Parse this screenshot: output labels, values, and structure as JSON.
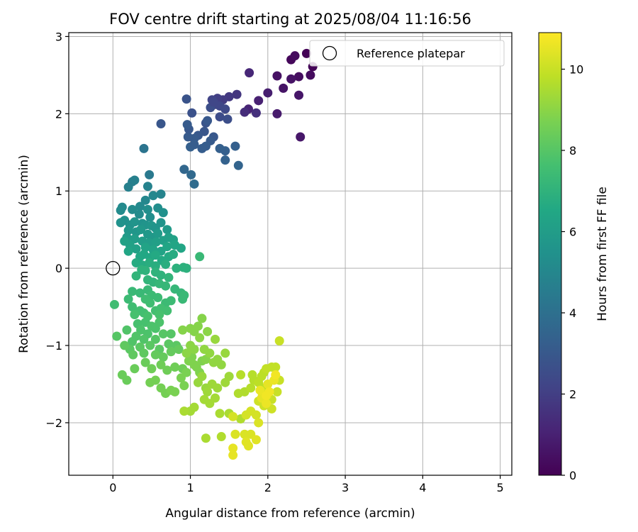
{
  "chart_data": {
    "type": "scatter",
    "title": "FOV centre drift starting at 2025/08/04 11:16:56",
    "xlabel": "Angular distance from reference (arcmin)",
    "ylabel": "Rotation from reference (arcmin)",
    "xlim": [
      -0.57,
      5.15
    ],
    "ylim": [
      -2.68,
      3.05
    ],
    "xticks": [
      0,
      1,
      2,
      3,
      4,
      5
    ],
    "xtick_labels": [
      "0",
      "1",
      "2",
      "3",
      "4",
      "5"
    ],
    "yticks": [
      -2,
      -1,
      0,
      1,
      2,
      3
    ],
    "ytick_labels": [
      "−2",
      "−1",
      "0",
      "1",
      "2",
      "3"
    ],
    "grid": true,
    "legend": {
      "position": "top-right",
      "entries": [
        "Reference platepar"
      ]
    },
    "colorbar": {
      "label": "Hours from first FF file",
      "colormap": "viridis",
      "range": [
        0,
        10.9
      ],
      "ticks": [
        0,
        2,
        4,
        6,
        8,
        10
      ],
      "tick_labels": [
        "0",
        "2",
        "4",
        "6",
        "8",
        "10"
      ]
    },
    "reference_point": {
      "name": "Reference platepar",
      "x": 0,
      "y": 0
    },
    "points": [
      [
        2.5,
        2.78,
        0.05
      ],
      [
        2.58,
        2.61,
        0.1
      ],
      [
        2.3,
        2.7,
        0.2
      ],
      [
        2.35,
        2.75,
        0.3
      ],
      [
        2.55,
        2.5,
        0.35
      ],
      [
        2.4,
        2.48,
        0.4
      ],
      [
        2.12,
        2.49,
        0.5
      ],
      [
        2.3,
        2.45,
        0.55
      ],
      [
        2.2,
        2.33,
        0.6
      ],
      [
        2.4,
        2.24,
        0.65
      ],
      [
        2.42,
        1.7,
        0.7
      ],
      [
        2.12,
        2.0,
        0.8
      ],
      [
        2.0,
        2.27,
        0.9
      ],
      [
        1.88,
        2.17,
        1.0
      ],
      [
        1.75,
        2.06,
        1.1
      ],
      [
        1.76,
        2.53,
        1.2
      ],
      [
        1.7,
        2.02,
        1.4
      ],
      [
        1.85,
        2.01,
        1.5
      ],
      [
        1.6,
        2.25,
        1.7
      ],
      [
        1.5,
        2.22,
        1.8
      ],
      [
        1.42,
        2.18,
        1.9
      ],
      [
        1.35,
        2.2,
        2.0
      ],
      [
        1.32,
        2.12,
        2.1
      ],
      [
        1.28,
        2.18,
        2.2
      ],
      [
        1.38,
        2.1,
        2.3
      ],
      [
        1.45,
        2.06,
        2.4
      ],
      [
        1.38,
        1.96,
        2.5
      ],
      [
        1.26,
        2.08,
        2.6
      ],
      [
        1.3,
        2.15,
        2.3
      ],
      [
        1.48,
        1.93,
        2.6
      ],
      [
        1.02,
        2.01,
        2.7
      ],
      [
        0.95,
        2.19,
        2.8
      ],
      [
        0.62,
        1.87,
        2.9
      ],
      [
        1.2,
        1.88,
        2.8
      ],
      [
        1.22,
        1.91,
        3.0
      ],
      [
        1.18,
        1.77,
        2.9
      ],
      [
        1.1,
        1.72,
        3.0
      ],
      [
        1.05,
        1.68,
        3.1
      ],
      [
        0.97,
        1.7,
        3.1
      ],
      [
        0.98,
        1.8,
        3.0
      ],
      [
        0.96,
        1.86,
        3.1
      ],
      [
        1.3,
        1.7,
        3.0
      ],
      [
        1.26,
        1.65,
        3.1
      ],
      [
        1.2,
        1.58,
        3.2
      ],
      [
        1.15,
        1.55,
        3.2
      ],
      [
        1.0,
        1.57,
        3.3
      ],
      [
        1.05,
        1.6,
        3.2
      ],
      [
        1.38,
        1.55,
        3.3
      ],
      [
        1.45,
        1.52,
        3.3
      ],
      [
        1.45,
        1.4,
        3.4
      ],
      [
        1.58,
        1.58,
        3.3
      ],
      [
        1.62,
        1.33,
        3.5
      ],
      [
        0.92,
        1.28,
        3.6
      ],
      [
        1.01,
        1.21,
        3.7
      ],
      [
        1.05,
        1.09,
        3.8
      ],
      [
        0.4,
        1.55,
        4.2
      ],
      [
        0.47,
        1.21,
        4.4
      ],
      [
        0.25,
        1.12,
        4.6
      ],
      [
        0.2,
        1.05,
        4.7
      ],
      [
        0.28,
        1.14,
        4.7
      ],
      [
        0.45,
        1.06,
        4.8
      ],
      [
        0.62,
        0.96,
        4.9
      ],
      [
        0.52,
        0.94,
        5.0
      ],
      [
        0.42,
        0.88,
        5.0
      ],
      [
        0.35,
        0.8,
        5.1
      ],
      [
        0.12,
        0.79,
        5.1
      ],
      [
        0.1,
        0.75,
        5.2
      ],
      [
        0.25,
        0.76,
        5.2
      ],
      [
        0.34,
        0.7,
        5.2
      ],
      [
        0.48,
        0.66,
        5.3
      ],
      [
        0.58,
        0.78,
        5.3
      ],
      [
        0.65,
        0.72,
        5.4
      ],
      [
        0.45,
        0.76,
        5.3
      ],
      [
        0.15,
        0.62,
        5.4
      ],
      [
        0.1,
        0.59,
        5.5
      ],
      [
        0.22,
        0.56,
        5.5
      ],
      [
        0.28,
        0.6,
        5.6
      ],
      [
        0.38,
        0.58,
        5.5
      ],
      [
        0.42,
        0.56,
        5.6
      ],
      [
        0.5,
        0.55,
        5.7
      ],
      [
        0.55,
        0.52,
        5.6
      ],
      [
        0.62,
        0.59,
        5.6
      ],
      [
        0.2,
        0.49,
        5.7
      ],
      [
        0.3,
        0.47,
        5.7
      ],
      [
        0.36,
        0.5,
        5.8
      ],
      [
        0.45,
        0.44,
        5.8
      ],
      [
        0.52,
        0.4,
        5.8
      ],
      [
        0.58,
        0.45,
        5.9
      ],
      [
        0.7,
        0.5,
        5.9
      ],
      [
        0.18,
        0.4,
        5.9
      ],
      [
        0.28,
        0.38,
        6.0
      ],
      [
        0.38,
        0.35,
        6.0
      ],
      [
        0.47,
        0.33,
        6.0
      ],
      [
        0.56,
        0.34,
        6.1
      ],
      [
        0.65,
        0.36,
        6.1
      ],
      [
        0.72,
        0.4,
        6.1
      ],
      [
        0.78,
        0.37,
        6.2
      ],
      [
        0.22,
        0.3,
        6.2
      ],
      [
        0.3,
        0.25,
        6.2
      ],
      [
        0.42,
        0.27,
        6.3
      ],
      [
        0.52,
        0.24,
        6.3
      ],
      [
        0.62,
        0.22,
        6.3
      ],
      [
        0.7,
        0.28,
        6.4
      ],
      [
        0.8,
        0.3,
        6.4
      ],
      [
        0.88,
        0.26,
        6.4
      ],
      [
        0.15,
        0.35,
        6.2
      ],
      [
        0.2,
        0.22,
        6.4
      ],
      [
        0.35,
        0.15,
        6.5
      ],
      [
        0.4,
        0.18,
        6.5
      ],
      [
        0.48,
        0.14,
        6.5
      ],
      [
        0.55,
        0.17,
        6.6
      ],
      [
        0.63,
        0.1,
        6.6
      ],
      [
        0.72,
        0.15,
        6.6
      ],
      [
        0.78,
        0.18,
        6.7
      ],
      [
        0.3,
        0.07,
        6.7
      ],
      [
        0.38,
        0.04,
        6.7
      ],
      [
        0.47,
        0.07,
        6.8
      ],
      [
        0.55,
        0.03,
        6.8
      ],
      [
        0.68,
        0.05,
        6.8
      ],
      [
        0.82,
        0.0,
        6.9
      ],
      [
        0.91,
        0.01,
        6.9
      ],
      [
        0.95,
        0.0,
        6.9
      ],
      [
        0.37,
        -0.02,
        7.0
      ],
      [
        0.42,
        -0.03,
        7.0
      ],
      [
        0.55,
        -0.05,
        7.0
      ],
      [
        0.62,
        -0.09,
        7.0
      ],
      [
        0.72,
        -0.12,
        7.1
      ],
      [
        0.3,
        -0.1,
        7.1
      ],
      [
        0.45,
        -0.15,
        7.1
      ],
      [
        0.52,
        -0.18,
        7.1
      ],
      [
        0.6,
        -0.2,
        7.2
      ],
      [
        0.68,
        -0.23,
        7.2
      ],
      [
        0.8,
        -0.27,
        7.2
      ],
      [
        0.88,
        -0.32,
        7.2
      ],
      [
        0.92,
        -0.35,
        7.3
      ],
      [
        0.9,
        -0.4,
        7.3
      ],
      [
        0.25,
        -0.3,
        7.3
      ],
      [
        0.35,
        -0.32,
        7.3
      ],
      [
        0.45,
        -0.28,
        7.3
      ],
      [
        0.5,
        -0.35,
        7.4
      ],
      [
        0.58,
        -0.38,
        7.4
      ],
      [
        0.68,
        -0.45,
        7.4
      ],
      [
        0.75,
        -0.42,
        7.4
      ],
      [
        1.12,
        0.15,
        7.3
      ],
      [
        0.2,
        -0.4,
        7.4
      ],
      [
        0.02,
        -0.47,
        7.5
      ],
      [
        0.42,
        -0.4,
        7.5
      ],
      [
        0.48,
        -0.45,
        7.5
      ],
      [
        0.25,
        -0.5,
        7.5
      ],
      [
        0.35,
        -0.55,
        7.6
      ],
      [
        0.4,
        -0.58,
        7.6
      ],
      [
        0.55,
        -0.55,
        7.6
      ],
      [
        0.62,
        -0.52,
        7.6
      ],
      [
        0.7,
        -0.55,
        7.6
      ],
      [
        0.28,
        -0.6,
        7.7
      ],
      [
        0.45,
        -0.62,
        7.7
      ],
      [
        0.6,
        -0.6,
        7.7
      ],
      [
        0.32,
        -0.72,
        7.7
      ],
      [
        0.42,
        -0.7,
        7.7
      ],
      [
        0.5,
        -0.75,
        7.8
      ],
      [
        0.6,
        -0.7,
        7.8
      ],
      [
        0.55,
        -0.78,
        7.8
      ],
      [
        0.45,
        -0.85,
        7.8
      ],
      [
        0.36,
        -0.8,
        7.8
      ],
      [
        0.3,
        -0.88,
        7.9
      ],
      [
        0.18,
        -0.8,
        7.9
      ],
      [
        0.25,
        -0.95,
        7.9
      ],
      [
        0.4,
        -0.92,
        7.9
      ],
      [
        0.55,
        -0.92,
        8.0
      ],
      [
        0.65,
        -0.85,
        8.0
      ],
      [
        0.75,
        -0.85,
        8.0
      ],
      [
        0.05,
        -0.88,
        8.0
      ],
      [
        0.22,
        -1.05,
        8.1
      ],
      [
        0.35,
        -1.02,
        8.1
      ],
      [
        0.48,
        -1.0,
        8.1
      ],
      [
        0.6,
        -1.05,
        8.1
      ],
      [
        0.72,
        -0.98,
        8.1
      ],
      [
        0.82,
        -1.0,
        8.1
      ],
      [
        0.15,
        -1.0,
        8.2
      ],
      [
        0.26,
        -1.12,
        8.2
      ],
      [
        0.4,
        -1.1,
        8.2
      ],
      [
        0.55,
        -1.12,
        8.3
      ],
      [
        0.65,
        -1.15,
        8.3
      ],
      [
        0.75,
        -1.08,
        8.3
      ],
      [
        0.85,
        -1.05,
        8.3
      ],
      [
        0.12,
        -1.38,
        8.4
      ],
      [
        0.18,
        -1.45,
        8.4
      ],
      [
        0.28,
        -1.3,
        8.4
      ],
      [
        0.42,
        -1.22,
        8.4
      ],
      [
        0.5,
        -1.3,
        8.5
      ],
      [
        0.62,
        -1.25,
        8.5
      ],
      [
        0.7,
        -1.32,
        8.5
      ],
      [
        0.8,
        -1.28,
        8.5
      ],
      [
        0.9,
        -1.3,
        8.5
      ],
      [
        0.48,
        -1.48,
        8.6
      ],
      [
        0.55,
        -1.45,
        8.6
      ],
      [
        0.62,
        -1.55,
        8.6
      ],
      [
        0.68,
        -1.62,
        8.6
      ],
      [
        0.75,
        -1.58,
        8.7
      ],
      [
        0.8,
        -1.6,
        8.7
      ],
      [
        0.88,
        -1.42,
        8.7
      ],
      [
        0.92,
        -1.52,
        8.7
      ],
      [
        0.95,
        -1.35,
        8.7
      ],
      [
        0.98,
        -1.2,
        8.8
      ],
      [
        1.02,
        -1.15,
        8.8
      ],
      [
        1.05,
        -1.25,
        8.8
      ],
      [
        1.08,
        -1.28,
        8.8
      ],
      [
        1.12,
        -1.35,
        8.8
      ],
      [
        1.15,
        -1.2,
        8.8
      ],
      [
        1.2,
        -1.18,
        8.9
      ],
      [
        0.9,
        -0.8,
        8.9
      ],
      [
        1.0,
        -0.78,
        8.9
      ],
      [
        1.05,
        -0.82,
        8.9
      ],
      [
        1.15,
        -0.65,
        8.9
      ],
      [
        1.1,
        -0.75,
        8.9
      ],
      [
        1.12,
        -0.9,
        9.0
      ],
      [
        1.22,
        -0.82,
        9.0
      ],
      [
        1.0,
        -1.0,
        9.0
      ],
      [
        0.95,
        -1.1,
        9.0
      ],
      [
        1.05,
        -1.05,
        9.0
      ],
      [
        1.18,
        -1.05,
        9.1
      ],
      [
        1.25,
        -1.1,
        9.1
      ],
      [
        1.3,
        -1.22,
        9.1
      ],
      [
        1.35,
        -1.18,
        9.1
      ],
      [
        1.4,
        -1.25,
        9.1
      ],
      [
        1.45,
        -1.1,
        9.2
      ],
      [
        1.32,
        -0.92,
        9.2
      ],
      [
        1.15,
        -1.4,
        9.2
      ],
      [
        1.1,
        -1.48,
        9.2
      ],
      [
        1.2,
        -1.55,
        9.2
      ],
      [
        1.22,
        -1.6,
        9.3
      ],
      [
        1.28,
        -1.5,
        9.3
      ],
      [
        1.35,
        -1.55,
        9.3
      ],
      [
        1.5,
        -1.4,
        9.3
      ],
      [
        1.45,
        -1.48,
        9.3
      ],
      [
        1.18,
        -1.7,
        9.4
      ],
      [
        1.25,
        -1.75,
        9.4
      ],
      [
        1.32,
        -1.68,
        9.4
      ],
      [
        1.05,
        -1.8,
        9.4
      ],
      [
        1.0,
        -1.85,
        9.4
      ],
      [
        0.92,
        -1.85,
        9.5
      ],
      [
        1.38,
        -1.88,
        9.5
      ],
      [
        1.5,
        -1.88,
        9.5
      ],
      [
        1.2,
        -2.2,
        9.5
      ],
      [
        1.4,
        -2.18,
        9.6
      ],
      [
        1.65,
        -1.95,
        9.6
      ],
      [
        1.62,
        -1.62,
        9.6
      ],
      [
        1.7,
        -1.6,
        9.6
      ],
      [
        1.65,
        -1.38,
        9.7
      ],
      [
        1.78,
        -1.55,
        9.7
      ],
      [
        1.8,
        -1.38,
        9.7
      ],
      [
        1.82,
        -1.45,
        9.7
      ],
      [
        1.88,
        -1.48,
        9.8
      ],
      [
        1.92,
        -1.4,
        9.8
      ],
      [
        1.95,
        -1.35,
        9.8
      ],
      [
        1.95,
        -1.55,
        9.8
      ],
      [
        1.98,
        -1.3,
        9.9
      ],
      [
        2.05,
        -1.28,
        9.9
      ],
      [
        2.1,
        -1.28,
        9.9
      ],
      [
        2.15,
        -0.94,
        10.0
      ],
      [
        2.15,
        -1.45,
        10.0
      ],
      [
        2.12,
        -1.6,
        10.0
      ],
      [
        2.05,
        -1.7,
        10.0
      ],
      [
        2.0,
        -1.65,
        10.1
      ],
      [
        1.92,
        -1.6,
        10.1
      ],
      [
        1.88,
        -1.72,
        10.1
      ],
      [
        1.95,
        -1.78,
        10.1
      ],
      [
        2.05,
        -1.82,
        10.1
      ],
      [
        1.78,
        -1.85,
        10.2
      ],
      [
        1.85,
        -1.9,
        10.2
      ],
      [
        1.72,
        -1.9,
        10.2
      ],
      [
        1.55,
        -1.92,
        10.2
      ],
      [
        1.58,
        -2.15,
        10.3
      ],
      [
        1.7,
        -2.15,
        10.3
      ],
      [
        1.78,
        -2.15,
        10.3
      ],
      [
        1.88,
        -2.0,
        10.3
      ],
      [
        1.72,
        -2.25,
        10.4
      ],
      [
        1.85,
        -2.22,
        10.4
      ],
      [
        1.75,
        -2.3,
        10.4
      ],
      [
        1.55,
        -2.33,
        10.5
      ],
      [
        1.55,
        -2.42,
        10.5
      ],
      [
        1.92,
        -1.68,
        10.5
      ],
      [
        2.0,
        -1.5,
        10.5
      ],
      [
        2.08,
        -1.45,
        10.6
      ],
      [
        1.9,
        -1.58,
        10.6
      ],
      [
        1.98,
        -1.75,
        10.6
      ],
      [
        2.02,
        -1.6,
        10.7
      ],
      [
        1.98,
        -1.65,
        10.7
      ],
      [
        2.1,
        -1.38,
        10.7
      ]
    ]
  }
}
